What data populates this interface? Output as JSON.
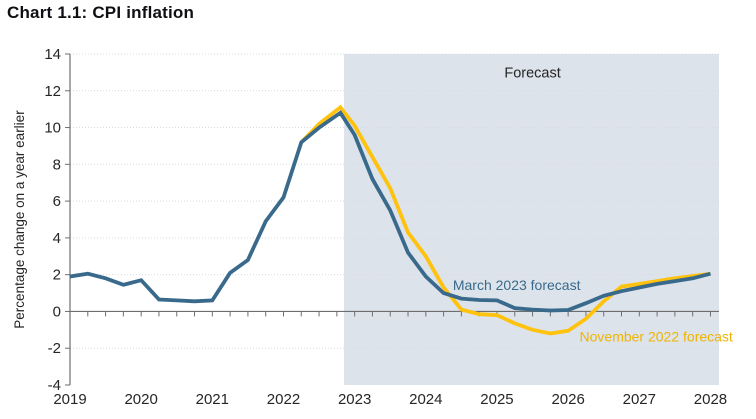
{
  "title": "Chart 1.1: CPI inflation",
  "colors": {
    "march_forecast": "#3A6A8B",
    "november_forecast": "#FFC20E",
    "november_label_text": "#F0B400",
    "forecast_shade": "#DCE3EB",
    "axis": "#6E6E6E",
    "grid": "#D8DCE1",
    "tick_text": "#262626",
    "title_text": "#0F0F14"
  },
  "chart_data": {
    "type": "line",
    "title": "Chart 1.1: CPI inflation",
    "xlabel": "",
    "ylabel": "Percentage change on a year earlier",
    "ylim": [
      -4,
      14
    ],
    "ytick_step": 2,
    "xlim": [
      2019,
      2028.12
    ],
    "xticks": [
      2019,
      2020,
      2021,
      2022,
      2023,
      2024,
      2025,
      2026,
      2027,
      2028
    ],
    "grid": "horizontal dotted",
    "legend_position": "inline line labels",
    "forecast_region": {
      "label": "Forecast",
      "x_start": 2022.85,
      "x_end": 2028.12
    },
    "series": [
      {
        "id": "march-2023-forecast",
        "name": "March 2023 forecast",
        "color": "#3A6A8B",
        "x": [
          2019.0,
          2019.25,
          2019.5,
          2019.75,
          2020.0,
          2020.25,
          2020.5,
          2020.75,
          2021.0,
          2021.25,
          2021.5,
          2021.75,
          2022.0,
          2022.25,
          2022.5,
          2022.8,
          2023.0,
          2023.25,
          2023.5,
          2023.75,
          2024.0,
          2024.25,
          2024.5,
          2024.75,
          2025.0,
          2025.25,
          2025.5,
          2025.75,
          2026.0,
          2026.25,
          2026.5,
          2026.75,
          2027.0,
          2027.25,
          2027.5,
          2027.75,
          2028.0
        ],
        "values": [
          1.9,
          2.05,
          1.8,
          1.45,
          1.7,
          0.65,
          0.6,
          0.55,
          0.6,
          2.1,
          2.8,
          4.9,
          6.2,
          9.2,
          10.0,
          10.8,
          9.6,
          7.2,
          5.5,
          3.2,
          1.9,
          1.0,
          0.7,
          0.62,
          0.6,
          0.18,
          0.1,
          0.05,
          0.08,
          0.45,
          0.85,
          1.1,
          1.3,
          1.5,
          1.65,
          1.8,
          2.05
        ]
      },
      {
        "id": "november-2022-forecast",
        "name": "November 2022 forecast",
        "color": "#FFC20E",
        "x": [
          2022.25,
          2022.5,
          2022.8,
          2023.0,
          2023.25,
          2023.5,
          2023.75,
          2024.0,
          2024.25,
          2024.5,
          2024.75,
          2025.0,
          2025.25,
          2025.5,
          2025.75,
          2026.0,
          2026.25,
          2026.5,
          2026.75,
          2027.0,
          2027.25,
          2027.5,
          2027.75,
          2028.0
        ],
        "values": [
          9.2,
          10.2,
          11.1,
          10.1,
          8.4,
          6.7,
          4.3,
          3.0,
          1.3,
          0.1,
          -0.15,
          -0.2,
          -0.65,
          -1.0,
          -1.2,
          -1.05,
          -0.4,
          0.55,
          1.35,
          1.5,
          1.65,
          1.8,
          1.93,
          2.05
        ]
      }
    ],
    "annotations": [
      {
        "id": "forecast-region-label",
        "text": "Forecast",
        "x": 2025.5,
        "y": 13.0,
        "anchor": "middle",
        "color": "#262626",
        "size": 14.5
      },
      {
        "id": "march-2023-forecast-label",
        "text": "March 2023 forecast",
        "x": 2024.38,
        "y": 1.44,
        "anchor": "start",
        "color": "#3A6A8B",
        "size": 14
      },
      {
        "id": "november-2022-forecast-label",
        "text": "November 2022 forecast",
        "x": 2026.16,
        "y": -1.36,
        "anchor": "start",
        "color": "#F0B400",
        "size": 14
      }
    ]
  }
}
